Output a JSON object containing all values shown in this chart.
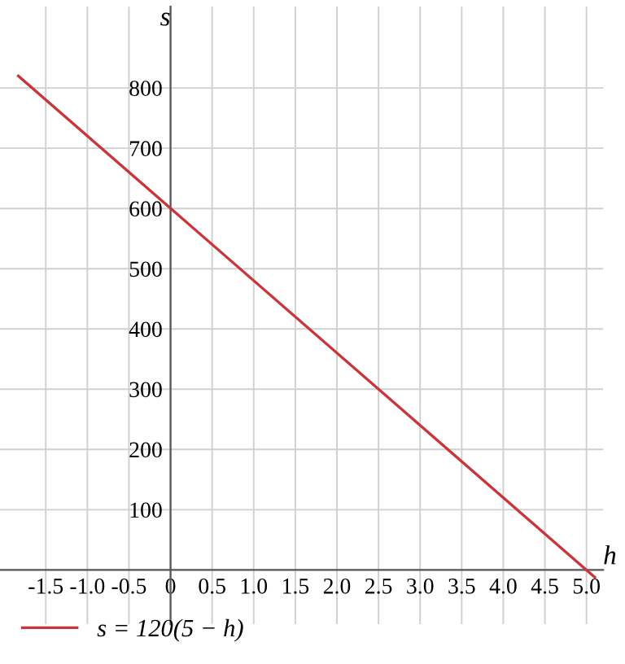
{
  "chart_data": {
    "type": "line",
    "xlabel": "h",
    "ylabel": "s",
    "x": [
      -1.83,
      5.1
    ],
    "series": [
      {
        "name": "s = 120(5 − h)",
        "color": "#c8353a",
        "values": [
          820,
          -12
        ]
      }
    ],
    "xlim": [
      -2.05,
      5.2
    ],
    "ylim": [
      -90,
      935
    ],
    "xticks": [
      {
        "value": -1.5,
        "label": "-1.5"
      },
      {
        "value": -1.0,
        "label": "-1.0"
      },
      {
        "value": -0.5,
        "label": "-0.5"
      },
      {
        "value": 0,
        "label": "0"
      },
      {
        "value": 0.5,
        "label": "0.5"
      },
      {
        "value": 1.0,
        "label": "1.0"
      },
      {
        "value": 1.5,
        "label": "1.5"
      },
      {
        "value": 2.0,
        "label": "2.0"
      },
      {
        "value": 2.5,
        "label": "2.5"
      },
      {
        "value": 3.0,
        "label": "3.0"
      },
      {
        "value": 3.5,
        "label": "3.5"
      },
      {
        "value": 4.0,
        "label": "4.0"
      },
      {
        "value": 4.5,
        "label": "4.5"
      },
      {
        "value": 5.0,
        "label": "5.0"
      }
    ],
    "yticks": [
      100,
      200,
      300,
      400,
      500,
      600,
      700,
      800
    ],
    "grid": true,
    "legend": "bottom",
    "marker": "none",
    "line_style": "solid"
  }
}
